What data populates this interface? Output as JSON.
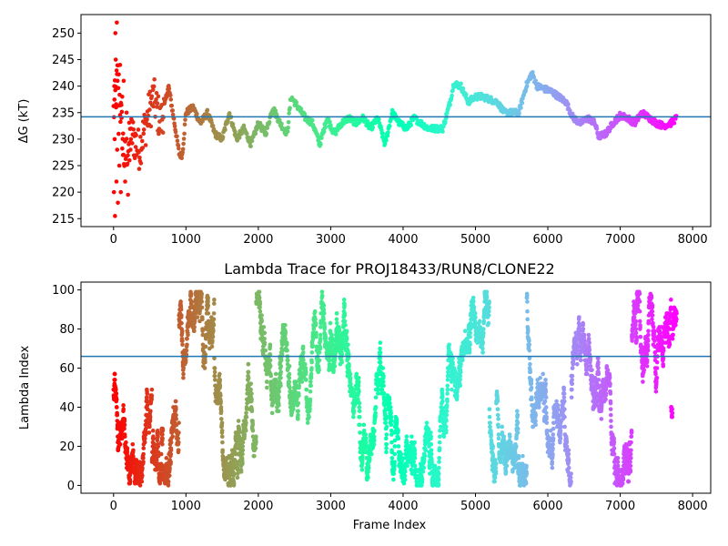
{
  "figure": {
    "title": "Lambda Trace for PROJ18433/RUN8/CLONE22"
  },
  "chart_data": [
    {
      "type": "scatter",
      "title": "",
      "xlabel": "",
      "ylabel": "ΔG (kT)",
      "xlim": [
        -450,
        8250
      ],
      "ylim": [
        213.5,
        253.5
      ],
      "xticks": [
        0,
        1000,
        2000,
        3000,
        4000,
        5000,
        6000,
        7000,
        8000
      ],
      "yticks": [
        215,
        220,
        225,
        230,
        235,
        240,
        245,
        250
      ],
      "colormap": "rainbow",
      "color_by": "x",
      "x_range_of_points": [
        0,
        7780
      ],
      "hline": {
        "y": 234.2,
        "color": "#1f77b4"
      },
      "trace_knots": [
        [
          0,
          235
        ],
        [
          60,
          242
        ],
        [
          150,
          226
        ],
        [
          250,
          231
        ],
        [
          350,
          228
        ],
        [
          450,
          233
        ],
        [
          550,
          238
        ],
        [
          650,
          233
        ],
        [
          760,
          240
        ],
        [
          830,
          234
        ],
        [
          910,
          227
        ],
        [
          950,
          227
        ],
        [
          1000,
          235
        ],
        [
          1100,
          236
        ],
        [
          1200,
          233
        ],
        [
          1300,
          235
        ],
        [
          1400,
          231
        ],
        [
          1500,
          230
        ],
        [
          1600,
          235
        ],
        [
          1700,
          230
        ],
        [
          1800,
          232
        ],
        [
          1900,
          229
        ],
        [
          2000,
          233
        ],
        [
          2100,
          231
        ],
        [
          2200,
          236
        ],
        [
          2300,
          233
        ],
        [
          2400,
          231
        ],
        [
          2450,
          238
        ],
        [
          2550,
          236
        ],
        [
          2650,
          234
        ],
        [
          2750,
          233
        ],
        [
          2850,
          229
        ],
        [
          2950,
          234
        ],
        [
          3050,
          231
        ],
        [
          3150,
          233
        ],
        [
          3250,
          234
        ],
        [
          3350,
          233
        ],
        [
          3450,
          234
        ],
        [
          3550,
          232
        ],
        [
          3650,
          234
        ],
        [
          3750,
          229
        ],
        [
          3850,
          235
        ],
        [
          3950,
          233
        ],
        [
          4050,
          232
        ],
        [
          4150,
          234
        ],
        [
          4250,
          233
        ],
        [
          4350,
          232
        ],
        [
          4450,
          232
        ],
        [
          4550,
          232
        ],
        [
          4650,
          237
        ],
        [
          4700,
          240.5
        ],
        [
          4800,
          240
        ],
        [
          4900,
          237
        ],
        [
          5000,
          238
        ],
        [
          5100,
          238
        ],
        [
          5200,
          237.5
        ],
        [
          5300,
          237
        ],
        [
          5400,
          235
        ],
        [
          5500,
          235
        ],
        [
          5600,
          235
        ],
        [
          5700,
          240
        ],
        [
          5780,
          242.5
        ],
        [
          5850,
          240
        ],
        [
          5950,
          239.5
        ],
        [
          6050,
          239
        ],
        [
          6150,
          238
        ],
        [
          6250,
          237
        ],
        [
          6350,
          234
        ],
        [
          6450,
          233
        ],
        [
          6550,
          234
        ],
        [
          6650,
          233
        ],
        [
          6700,
          230.5
        ],
        [
          6800,
          231
        ],
        [
          6900,
          233
        ],
        [
          7000,
          234.5
        ],
        [
          7100,
          234
        ],
        [
          7200,
          233
        ],
        [
          7300,
          235
        ],
        [
          7400,
          234
        ],
        [
          7500,
          233
        ],
        [
          7600,
          232.5
        ],
        [
          7700,
          233
        ],
        [
          7780,
          234
        ]
      ],
      "early_points": [
        [
          5,
          220
        ],
        [
          10,
          240
        ],
        [
          15,
          230
        ],
        [
          20,
          215.5
        ],
        [
          25,
          250
        ],
        [
          30,
          245
        ],
        [
          35,
          236
        ],
        [
          40,
          222
        ],
        [
          45,
          252
        ],
        [
          50,
          228
        ],
        [
          55,
          241
        ],
        [
          60,
          218
        ],
        [
          70,
          231
        ],
        [
          80,
          225
        ],
        [
          90,
          244
        ],
        [
          100,
          220
        ],
        [
          110,
          234
        ],
        [
          120,
          238
        ],
        [
          130,
          227
        ],
        [
          140,
          241
        ],
        [
          160,
          222
        ],
        [
          180,
          235
        ],
        [
          200,
          219.5
        ],
        [
          220,
          226
        ],
        [
          240,
          232
        ]
      ]
    },
    {
      "type": "scatter",
      "title": "Lambda Trace for PROJ18433/RUN8/CLONE22",
      "xlabel": "Frame Index",
      "ylabel": "Lambda Index",
      "xlim": [
        -450,
        8250
      ],
      "ylim": [
        -4,
        104
      ],
      "xticks": [
        0,
        1000,
        2000,
        3000,
        4000,
        5000,
        6000,
        7000,
        8000
      ],
      "yticks": [
        0,
        20,
        40,
        60,
        80,
        100
      ],
      "colormap": "rainbow",
      "color_by": "x",
      "x_range_of_points": [
        0,
        7780
      ],
      "lambda_range": [
        0,
        99
      ],
      "hline": {
        "y": 66,
        "color": "#1f77b4"
      }
    }
  ]
}
